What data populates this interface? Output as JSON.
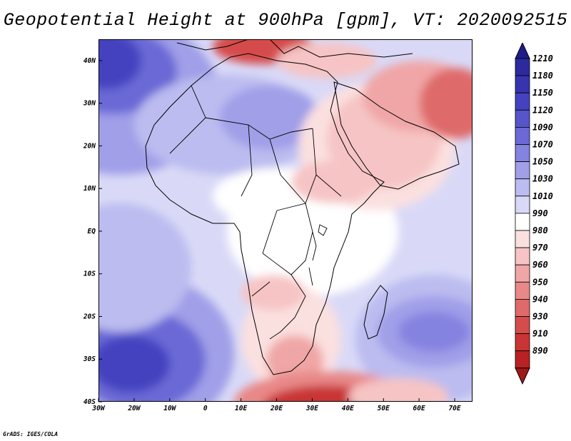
{
  "title": "Geopotential Height at 900hPa [gpm], VT: 2020092515",
  "credit": "GrADS: IGES/COLA",
  "map": {
    "lon_range": [
      -30,
      75
    ],
    "lat_range": [
      -40,
      45
    ],
    "lon_ticks": [
      {
        "value": -30,
        "label": "30W"
      },
      {
        "value": -20,
        "label": "20W"
      },
      {
        "value": -10,
        "label": "10W"
      },
      {
        "value": 0,
        "label": "0"
      },
      {
        "value": 10,
        "label": "10E"
      },
      {
        "value": 20,
        "label": "20E"
      },
      {
        "value": 30,
        "label": "30E"
      },
      {
        "value": 40,
        "label": "40E"
      },
      {
        "value": 50,
        "label": "50E"
      },
      {
        "value": 60,
        "label": "60E"
      },
      {
        "value": 70,
        "label": "70E"
      }
    ],
    "lat_ticks": [
      {
        "value": 40,
        "label": "40N"
      },
      {
        "value": 30,
        "label": "30N"
      },
      {
        "value": 20,
        "label": "20N"
      },
      {
        "value": 10,
        "label": "10N"
      },
      {
        "value": 0,
        "label": "EQ"
      },
      {
        "value": -10,
        "label": "10S"
      },
      {
        "value": -20,
        "label": "20S"
      },
      {
        "value": -30,
        "label": "30S"
      },
      {
        "value": -40,
        "label": "40S"
      }
    ]
  },
  "colorbar": {
    "levels": [
      {
        "label": "1210",
        "color": "#2c2a9e"
      },
      {
        "label": "1180",
        "color": "#3734b0"
      },
      {
        "label": "1150",
        "color": "#4542c0"
      },
      {
        "label": "1120",
        "color": "#5754cc"
      },
      {
        "label": "1090",
        "color": "#6b69d6"
      },
      {
        "label": "1070",
        "color": "#8583e0"
      },
      {
        "label": "1050",
        "color": "#a09fe8"
      },
      {
        "label": "1030",
        "color": "#bcbcf0"
      },
      {
        "label": "1010",
        "color": "#d9d9f7"
      },
      {
        "label": "990",
        "color": "#ffffff"
      },
      {
        "label": "980",
        "color": "#fbe0e0"
      },
      {
        "label": "970",
        "color": "#f6c4c4"
      },
      {
        "label": "960",
        "color": "#f0a6a6"
      },
      {
        "label": "950",
        "color": "#e88888"
      },
      {
        "label": "940",
        "color": "#df6a6a"
      },
      {
        "label": "930",
        "color": "#d54c4c"
      },
      {
        "label": "910",
        "color": "#c93434"
      },
      {
        "label": "890",
        "color": "#b82222"
      }
    ],
    "top_arrow_color": "#1e1c8a",
    "bottom_arrow_color": "#a01818"
  }
}
